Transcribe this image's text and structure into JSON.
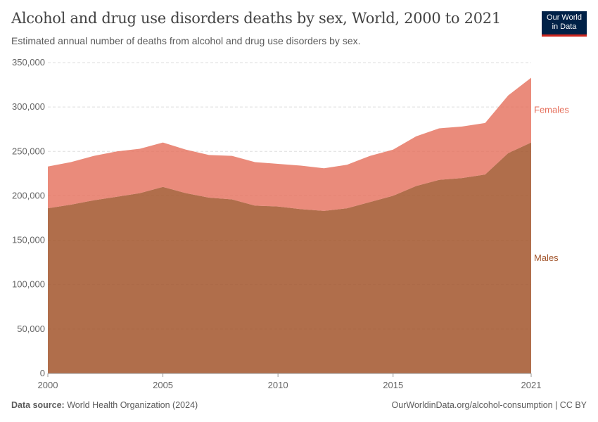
{
  "header": {
    "title": "Alcohol and drug use disorders deaths by sex, World, 2000 to 2021",
    "subtitle": "Estimated annual number of deaths from alcohol and drug use disorders by sex.",
    "logo": "Our World in Data"
  },
  "footer": {
    "source_label": "Data source:",
    "source": "World Health Organization (2024)",
    "url": "OurWorldinData.org/alcohol-consumption | CC BY"
  },
  "chart_data": {
    "type": "area",
    "stacked": true,
    "title": "Alcohol and drug use disorders deaths by sex, World, 2000 to 2021",
    "x": [
      2000,
      2001,
      2002,
      2003,
      2004,
      2005,
      2006,
      2007,
      2008,
      2009,
      2010,
      2011,
      2012,
      2013,
      2014,
      2015,
      2016,
      2017,
      2018,
      2019,
      2020,
      2021
    ],
    "xticks": [
      "2000",
      "2005",
      "2010",
      "2015",
      "2021"
    ],
    "yticks": [
      "0",
      "50,000",
      "100,000",
      "150,000",
      "200,000",
      "250,000",
      "300,000",
      "350,000"
    ],
    "ylim": [
      0,
      350000
    ],
    "grid": "horizontal dashed",
    "legend": "inline-right",
    "series": [
      {
        "name": "Males",
        "color": "#a2552c",
        "values": [
          186000,
          190000,
          195000,
          199000,
          203000,
          210000,
          203000,
          198000,
          196000,
          189000,
          188000,
          185000,
          183000,
          186000,
          193000,
          200000,
          211000,
          218000,
          220000,
          224000,
          248000,
          260000
        ]
      },
      {
        "name": "Females",
        "color": "#e56e5a",
        "values": [
          47000,
          48000,
          50000,
          51000,
          50000,
          50000,
          49000,
          48000,
          49000,
          49000,
          48000,
          49000,
          48000,
          49000,
          52000,
          52000,
          56000,
          58000,
          58000,
          58000,
          65000,
          73000
        ]
      }
    ]
  }
}
